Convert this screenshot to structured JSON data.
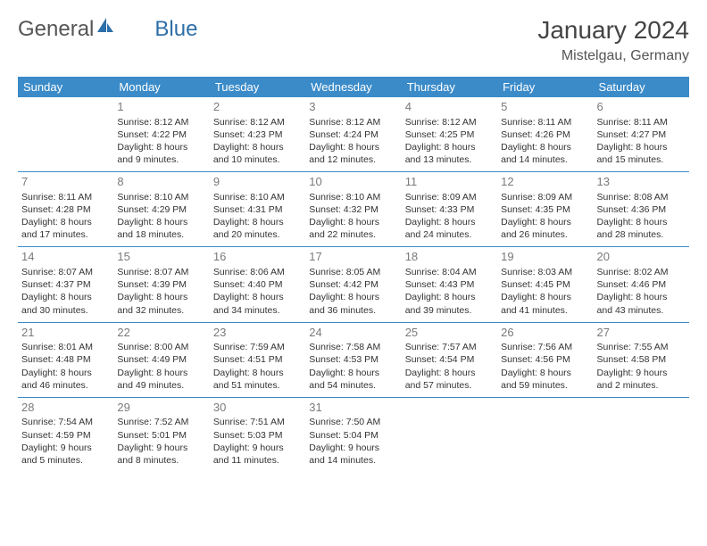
{
  "brand": {
    "part1": "General",
    "part2": "Blue"
  },
  "colors": {
    "header_bg": "#3b8bc9",
    "header_fg": "#ffffff",
    "row_border": "#3b8bc9",
    "daynum": "#7a7a7a",
    "text": "#333333",
    "logo_gray": "#555555",
    "logo_blue": "#2d6fa8"
  },
  "title": "January 2024",
  "location": "Mistelgau, Germany",
  "weekdays": [
    "Sunday",
    "Monday",
    "Tuesday",
    "Wednesday",
    "Thursday",
    "Friday",
    "Saturday"
  ],
  "weeks": [
    [
      null,
      {
        "n": "1",
        "sr": "Sunrise: 8:12 AM",
        "ss": "Sunset: 4:22 PM",
        "d1": "Daylight: 8 hours",
        "d2": "and 9 minutes."
      },
      {
        "n": "2",
        "sr": "Sunrise: 8:12 AM",
        "ss": "Sunset: 4:23 PM",
        "d1": "Daylight: 8 hours",
        "d2": "and 10 minutes."
      },
      {
        "n": "3",
        "sr": "Sunrise: 8:12 AM",
        "ss": "Sunset: 4:24 PM",
        "d1": "Daylight: 8 hours",
        "d2": "and 12 minutes."
      },
      {
        "n": "4",
        "sr": "Sunrise: 8:12 AM",
        "ss": "Sunset: 4:25 PM",
        "d1": "Daylight: 8 hours",
        "d2": "and 13 minutes."
      },
      {
        "n": "5",
        "sr": "Sunrise: 8:11 AM",
        "ss": "Sunset: 4:26 PM",
        "d1": "Daylight: 8 hours",
        "d2": "and 14 minutes."
      },
      {
        "n": "6",
        "sr": "Sunrise: 8:11 AM",
        "ss": "Sunset: 4:27 PM",
        "d1": "Daylight: 8 hours",
        "d2": "and 15 minutes."
      }
    ],
    [
      {
        "n": "7",
        "sr": "Sunrise: 8:11 AM",
        "ss": "Sunset: 4:28 PM",
        "d1": "Daylight: 8 hours",
        "d2": "and 17 minutes."
      },
      {
        "n": "8",
        "sr": "Sunrise: 8:10 AM",
        "ss": "Sunset: 4:29 PM",
        "d1": "Daylight: 8 hours",
        "d2": "and 18 minutes."
      },
      {
        "n": "9",
        "sr": "Sunrise: 8:10 AM",
        "ss": "Sunset: 4:31 PM",
        "d1": "Daylight: 8 hours",
        "d2": "and 20 minutes."
      },
      {
        "n": "10",
        "sr": "Sunrise: 8:10 AM",
        "ss": "Sunset: 4:32 PM",
        "d1": "Daylight: 8 hours",
        "d2": "and 22 minutes."
      },
      {
        "n": "11",
        "sr": "Sunrise: 8:09 AM",
        "ss": "Sunset: 4:33 PM",
        "d1": "Daylight: 8 hours",
        "d2": "and 24 minutes."
      },
      {
        "n": "12",
        "sr": "Sunrise: 8:09 AM",
        "ss": "Sunset: 4:35 PM",
        "d1": "Daylight: 8 hours",
        "d2": "and 26 minutes."
      },
      {
        "n": "13",
        "sr": "Sunrise: 8:08 AM",
        "ss": "Sunset: 4:36 PM",
        "d1": "Daylight: 8 hours",
        "d2": "and 28 minutes."
      }
    ],
    [
      {
        "n": "14",
        "sr": "Sunrise: 8:07 AM",
        "ss": "Sunset: 4:37 PM",
        "d1": "Daylight: 8 hours",
        "d2": "and 30 minutes."
      },
      {
        "n": "15",
        "sr": "Sunrise: 8:07 AM",
        "ss": "Sunset: 4:39 PM",
        "d1": "Daylight: 8 hours",
        "d2": "and 32 minutes."
      },
      {
        "n": "16",
        "sr": "Sunrise: 8:06 AM",
        "ss": "Sunset: 4:40 PM",
        "d1": "Daylight: 8 hours",
        "d2": "and 34 minutes."
      },
      {
        "n": "17",
        "sr": "Sunrise: 8:05 AM",
        "ss": "Sunset: 4:42 PM",
        "d1": "Daylight: 8 hours",
        "d2": "and 36 minutes."
      },
      {
        "n": "18",
        "sr": "Sunrise: 8:04 AM",
        "ss": "Sunset: 4:43 PM",
        "d1": "Daylight: 8 hours",
        "d2": "and 39 minutes."
      },
      {
        "n": "19",
        "sr": "Sunrise: 8:03 AM",
        "ss": "Sunset: 4:45 PM",
        "d1": "Daylight: 8 hours",
        "d2": "and 41 minutes."
      },
      {
        "n": "20",
        "sr": "Sunrise: 8:02 AM",
        "ss": "Sunset: 4:46 PM",
        "d1": "Daylight: 8 hours",
        "d2": "and 43 minutes."
      }
    ],
    [
      {
        "n": "21",
        "sr": "Sunrise: 8:01 AM",
        "ss": "Sunset: 4:48 PM",
        "d1": "Daylight: 8 hours",
        "d2": "and 46 minutes."
      },
      {
        "n": "22",
        "sr": "Sunrise: 8:00 AM",
        "ss": "Sunset: 4:49 PM",
        "d1": "Daylight: 8 hours",
        "d2": "and 49 minutes."
      },
      {
        "n": "23",
        "sr": "Sunrise: 7:59 AM",
        "ss": "Sunset: 4:51 PM",
        "d1": "Daylight: 8 hours",
        "d2": "and 51 minutes."
      },
      {
        "n": "24",
        "sr": "Sunrise: 7:58 AM",
        "ss": "Sunset: 4:53 PM",
        "d1": "Daylight: 8 hours",
        "d2": "and 54 minutes."
      },
      {
        "n": "25",
        "sr": "Sunrise: 7:57 AM",
        "ss": "Sunset: 4:54 PM",
        "d1": "Daylight: 8 hours",
        "d2": "and 57 minutes."
      },
      {
        "n": "26",
        "sr": "Sunrise: 7:56 AM",
        "ss": "Sunset: 4:56 PM",
        "d1": "Daylight: 8 hours",
        "d2": "and 59 minutes."
      },
      {
        "n": "27",
        "sr": "Sunrise: 7:55 AM",
        "ss": "Sunset: 4:58 PM",
        "d1": "Daylight: 9 hours",
        "d2": "and 2 minutes."
      }
    ],
    [
      {
        "n": "28",
        "sr": "Sunrise: 7:54 AM",
        "ss": "Sunset: 4:59 PM",
        "d1": "Daylight: 9 hours",
        "d2": "and 5 minutes."
      },
      {
        "n": "29",
        "sr": "Sunrise: 7:52 AM",
        "ss": "Sunset: 5:01 PM",
        "d1": "Daylight: 9 hours",
        "d2": "and 8 minutes."
      },
      {
        "n": "30",
        "sr": "Sunrise: 7:51 AM",
        "ss": "Sunset: 5:03 PM",
        "d1": "Daylight: 9 hours",
        "d2": "and 11 minutes."
      },
      {
        "n": "31",
        "sr": "Sunrise: 7:50 AM",
        "ss": "Sunset: 5:04 PM",
        "d1": "Daylight: 9 hours",
        "d2": "and 14 minutes."
      },
      null,
      null,
      null
    ]
  ]
}
